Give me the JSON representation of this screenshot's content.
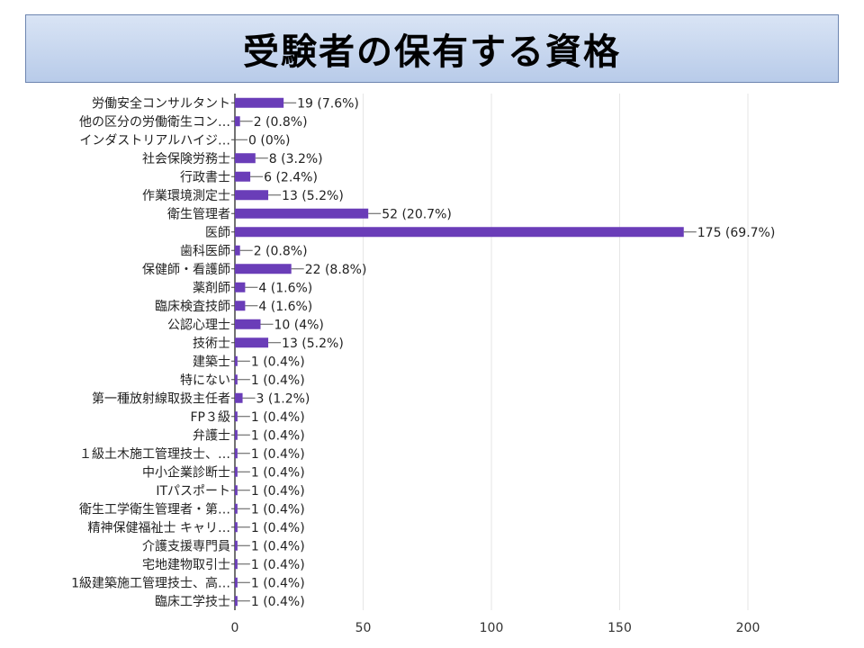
{
  "slide": {
    "title": "受験者の保有する資格"
  },
  "colors": {
    "bar": "#6a3db8",
    "grid": "#e6e6e6",
    "axis": "#444444",
    "title_bg": "#c9d8f0"
  },
  "chart_data": {
    "type": "bar",
    "orientation": "horizontal",
    "categories": [
      "労働安全コンサルタント",
      "他の区分の労働衛生コン…",
      "インダストリアルハイジ…",
      "社会保険労務士",
      "行政書士",
      "作業環境測定士",
      "衛生管理者",
      "医師",
      "歯科医師",
      "保健師・看護師",
      "薬剤師",
      "臨床検査技師",
      "公認心理士",
      "技術士",
      "建築士",
      "特にない",
      "第一種放射線取扱主任者",
      "FP３級",
      "弁護士",
      "１級土木施工管理技士、…",
      "中小企業診断士",
      "ITパスポート",
      "衛生工学衛生管理者・第…",
      "精神保健福祉士 キャリ…",
      "介護支援専門員",
      "宅地建物取引士",
      "1級建築施工管理技士、高…",
      "臨床工学技士"
    ],
    "values": [
      19,
      2,
      0,
      8,
      6,
      13,
      52,
      175,
      2,
      22,
      4,
      4,
      10,
      13,
      1,
      1,
      3,
      1,
      1,
      1,
      1,
      1,
      1,
      1,
      1,
      1,
      1,
      1
    ],
    "data_labels": [
      "19 (7.6%)",
      "2 (0.8%)",
      "0 (0%)",
      "8 (3.2%)",
      "6 (2.4%)",
      "13 (5.2%)",
      "52 (20.7%)",
      "175 (69.7%)",
      "2 (0.8%)",
      "22 (8.8%)",
      "4 (1.6%)",
      "4 (1.6%)",
      "10 (4%)",
      "13 (5.2%)",
      "1 (0.4%)",
      "1 (0.4%)",
      "3 (1.2%)",
      "1 (0.4%)",
      "1 (0.4%)",
      "1 (0.4%)",
      "1 (0.4%)",
      "1 (0.4%)",
      "1 (0.4%)",
      "1 (0.4%)",
      "1 (0.4%)",
      "1 (0.4%)",
      "1 (0.4%)",
      "1 (0.4%)"
    ],
    "x_ticks": [
      "0",
      "50",
      "100",
      "150",
      "200"
    ],
    "xlim": [
      0,
      200
    ],
    "grid": true,
    "legend": "none"
  }
}
